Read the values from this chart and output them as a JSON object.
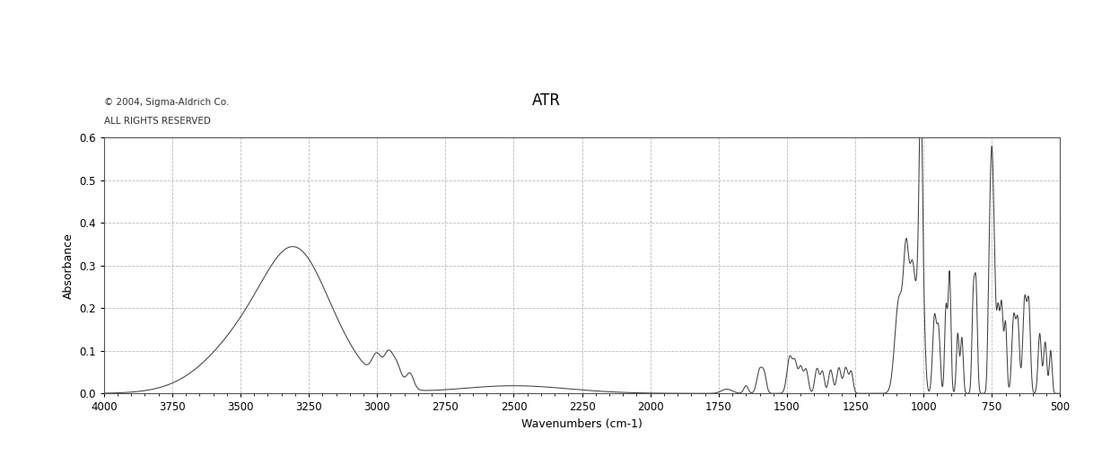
{
  "title": "ATR",
  "xlabel": "Wavenumbers (cm-1)",
  "ylabel": "Absorbance",
  "copyright_line1": "© 2004, Sigma-Aldrich Co.",
  "copyright_line2": "ALL RIGHTS RESERVED",
  "xlim": [
    4000,
    500
  ],
  "ylim": [
    0.0,
    0.6
  ],
  "yticks": [
    0.0,
    0.1,
    0.2,
    0.3,
    0.4,
    0.5,
    0.6
  ],
  "xticks": [
    4000,
    3750,
    3500,
    3250,
    3000,
    2750,
    2500,
    2250,
    2000,
    1750,
    1500,
    1250,
    1000,
    750,
    500
  ],
  "background_color": "#ffffff",
  "line_color": "#404040",
  "grid_color": "#aaaaaa",
  "title_fontsize": 12,
  "label_fontsize": 9,
  "tick_fontsize": 8.5,
  "copyright_fontsize": 7.5
}
